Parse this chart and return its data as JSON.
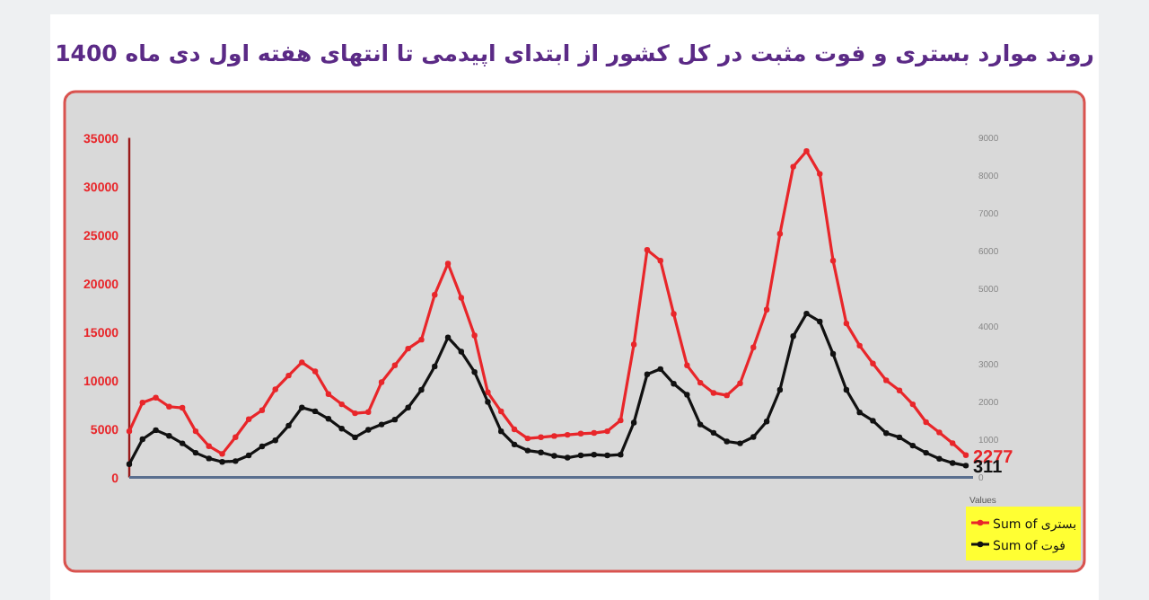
{
  "chart_data": {
    "type": "line",
    "title": "روند موارد بستری و فوت مثبت در کل کشور از ابتدای اپیدمی تا انتهای هفته اول دی ماه 1400",
    "categories": [
      null,
      null,
      null,
      null,
      null,
      null,
      null,
      null,
      null,
      null,
      null,
      null,
      null,
      null,
      null,
      null,
      null,
      null,
      null,
      null,
      null,
      null,
      null,
      null,
      null,
      null,
      null,
      null,
      null,
      null,
      null,
      null,
      null,
      null,
      null,
      null,
      null,
      null,
      null,
      null,
      null,
      null,
      null,
      null,
      null,
      null,
      null,
      null,
      null,
      null,
      null,
      null,
      null,
      null,
      null,
      null,
      null,
      null,
      null,
      null,
      null,
      null,
      null,
      null
    ],
    "series": [
      {
        "name": "Sum of بستری",
        "color": "#e8262a",
        "values": [
          4750,
          7710,
          8210,
          7280,
          7160,
          4750,
          3210,
          2410,
          4130,
          5980,
          6910,
          9070,
          10490,
          11850,
          10920,
          8580,
          7530,
          6600,
          6720,
          9810,
          11540,
          13270,
          14190,
          18820,
          22030,
          18510,
          14620,
          8760,
          6790,
          4940,
          4010,
          4130,
          4260,
          4380,
          4500,
          4570,
          4750,
          5860,
          13700,
          23450,
          22340,
          16840,
          11540,
          9750,
          8700,
          8450,
          9690,
          13390,
          17280,
          25110,
          32020,
          33630,
          31280,
          22340,
          15860,
          13570,
          11720,
          10000,
          8950,
          7530,
          5680,
          4630,
          3520,
          2277
        ],
        "value_labels": [
          null,
          null,
          null,
          null,
          null,
          null,
          null,
          null,
          null,
          null,
          null,
          null,
          null,
          null,
          null,
          null,
          null,
          null,
          null,
          null,
          null,
          null,
          null,
          null,
          null,
          null,
          null,
          null,
          null,
          null,
          null,
          null,
          null,
          null,
          null,
          null,
          null,
          null,
          null,
          null,
          null,
          null,
          null,
          null,
          null,
          null,
          null,
          null,
          null,
          null,
          null,
          null,
          null,
          null,
          null,
          null,
          null,
          null,
          null,
          null,
          null,
          null,
          null,
          "2277"
        ]
      },
      {
        "name": "Sum of فوت",
        "color": "#111111",
        "axis": "y2",
        "values": [
          350,
          1010,
          1250,
          1100,
          900,
          650,
          500,
          410,
          430,
          580,
          820,
          980,
          1370,
          1850,
          1750,
          1550,
          1290,
          1060,
          1260,
          1400,
          1530,
          1850,
          2320,
          2940,
          3710,
          3330,
          2790,
          2000,
          1220,
          870,
          710,
          660,
          570,
          520,
          580,
          600,
          580,
          600,
          1450,
          2730,
          2870,
          2480,
          2190,
          1400,
          1180,
          950,
          900,
          1070,
          1480,
          2320,
          3740,
          4340,
          4130,
          3270,
          2320,
          1720,
          1500,
          1170,
          1060,
          840,
          650,
          490,
          380,
          311
        ],
        "value_labels": [
          null,
          null,
          null,
          null,
          null,
          null,
          null,
          null,
          null,
          null,
          null,
          null,
          null,
          null,
          null,
          null,
          null,
          null,
          null,
          null,
          null,
          null,
          null,
          null,
          null,
          null,
          null,
          null,
          null,
          null,
          null,
          null,
          null,
          null,
          null,
          null,
          null,
          null,
          null,
          null,
          null,
          null,
          null,
          null,
          null,
          null,
          null,
          null,
          null,
          null,
          null,
          null,
          null,
          null,
          null,
          null,
          null,
          null,
          null,
          null,
          null,
          null,
          null,
          "311"
        ]
      }
    ],
    "ylim": [
      0,
      35000
    ],
    "yticks": [
      0,
      5000,
      10000,
      15000,
      20000,
      25000,
      30000,
      35000
    ],
    "y2lim": [
      0,
      9000
    ],
    "y2ticks": [
      0,
      1000,
      2000,
      3000,
      4000,
      5000,
      6000,
      7000,
      8000,
      9000
    ],
    "legend_title": "Values",
    "legend": "bottom right",
    "marker": "circle",
    "line_style": "solid",
    "grid": false,
    "tick_labels": "y"
  }
}
